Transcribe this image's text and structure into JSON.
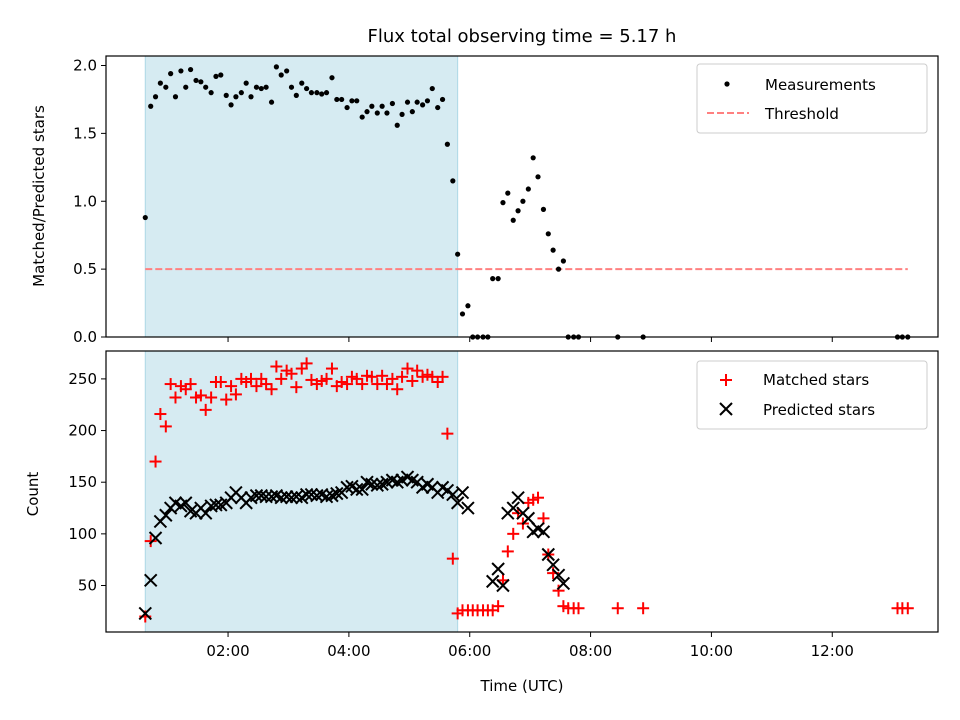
{
  "chart_data": [
    {
      "type": "scatter",
      "title": "Flux total observing time = 5.17 h",
      "ylabel": "Matched/Predicted stars",
      "xlabel": "",
      "ylim": [
        0,
        2.07
      ],
      "yticks": [
        0.0,
        0.5,
        1.0,
        1.5,
        2.0
      ],
      "ytick_labels": [
        "0.0",
        "0.5",
        "1.0",
        "1.5",
        "2.0"
      ],
      "xlim_hours": [
        -0.02,
        13.75
      ],
      "xticks_hours": [
        2,
        4,
        6,
        8,
        10,
        12
      ],
      "grid": false,
      "legend_position": "top-right",
      "observing_window_hours": [
        0.63,
        5.8
      ],
      "colors": {
        "measurements": "#000000",
        "threshold": "#ff8080",
        "window": "#add8e6"
      },
      "threshold": {
        "name": "Threshold",
        "value": 0.5,
        "x_start_hours": 0.63,
        "x_end_hours": 13.25
      },
      "series": [
        {
          "name": "Measurements",
          "x_hours": [
            0.63,
            0.72,
            0.8,
            0.88,
            0.97,
            1.05,
            1.13,
            1.22,
            1.3,
            1.38,
            1.47,
            1.55,
            1.63,
            1.72,
            1.8,
            1.88,
            1.97,
            2.05,
            2.13,
            2.22,
            2.3,
            2.38,
            2.47,
            2.55,
            2.63,
            2.72,
            2.8,
            2.88,
            2.97,
            3.05,
            3.13,
            3.22,
            3.3,
            3.38,
            3.47,
            3.55,
            3.63,
            3.72,
            3.8,
            3.88,
            3.97,
            4.05,
            4.13,
            4.22,
            4.3,
            4.38,
            4.47,
            4.55,
            4.63,
            4.72,
            4.8,
            4.88,
            4.97,
            5.05,
            5.13,
            5.22,
            5.3,
            5.38,
            5.47,
            5.55,
            5.63,
            5.72,
            5.8,
            5.88,
            5.97,
            6.05,
            6.13,
            6.22,
            6.3,
            6.38,
            6.47,
            6.55,
            6.63,
            6.72,
            6.8,
            6.88,
            6.97,
            7.05,
            7.13,
            7.22,
            7.3,
            7.38,
            7.47,
            7.55,
            7.63,
            7.72,
            7.8,
            8.45,
            8.87,
            13.08,
            13.16,
            13.25
          ],
          "values": [
            0.88,
            1.7,
            1.77,
            1.87,
            1.84,
            1.94,
            1.77,
            1.96,
            1.84,
            1.97,
            1.89,
            1.88,
            1.84,
            1.8,
            1.92,
            1.93,
            1.78,
            1.71,
            1.77,
            1.8,
            1.87,
            1.77,
            1.84,
            1.83,
            1.84,
            1.73,
            1.99,
            1.93,
            1.96,
            1.84,
            1.78,
            1.87,
            1.83,
            1.8,
            1.8,
            1.79,
            1.8,
            1.91,
            1.75,
            1.75,
            1.69,
            1.74,
            1.74,
            1.62,
            1.66,
            1.7,
            1.65,
            1.7,
            1.65,
            1.72,
            1.56,
            1.64,
            1.73,
            1.66,
            1.73,
            1.71,
            1.74,
            1.83,
            1.69,
            1.75,
            1.42,
            1.15,
            0.61,
            0.17,
            0.23,
            0.0,
            0.0,
            0.0,
            0.0,
            0.43,
            0.43,
            0.99,
            1.06,
            0.86,
            0.93,
            1.0,
            1.09,
            1.32,
            1.18,
            0.94,
            0.76,
            0.64,
            0.5,
            0.56,
            0.0,
            0.0,
            0.0,
            0.0,
            0.0,
            0.0,
            0.0,
            0.0
          ]
        }
      ]
    },
    {
      "type": "scatter",
      "title": "",
      "ylabel": "Count",
      "xlabel": "Time (UTC)",
      "ylim": [
        5,
        277
      ],
      "yticks": [
        50,
        100,
        150,
        200,
        250
      ],
      "ytick_labels": [
        "50",
        "100",
        "150",
        "200",
        "250"
      ],
      "xlim_hours": [
        -0.02,
        13.75
      ],
      "xticks_hours": [
        2,
        4,
        6,
        8,
        10,
        12
      ],
      "xtick_labels": [
        "02:00",
        "04:00",
        "06:00",
        "08:00",
        "10:00",
        "12:00"
      ],
      "grid": false,
      "legend_position": "top-right",
      "observing_window_hours": [
        0.63,
        5.8
      ],
      "colors": {
        "matched": "#ff0000",
        "predicted": "#000000",
        "window": "#add8e6"
      },
      "series": [
        {
          "name": "Matched stars",
          "x_hours": [
            0.63,
            0.72,
            0.8,
            0.88,
            0.97,
            1.05,
            1.13,
            1.22,
            1.3,
            1.38,
            1.47,
            1.55,
            1.63,
            1.72,
            1.8,
            1.88,
            1.97,
            2.05,
            2.13,
            2.22,
            2.3,
            2.38,
            2.47,
            2.55,
            2.63,
            2.72,
            2.8,
            2.88,
            2.97,
            3.05,
            3.13,
            3.22,
            3.3,
            3.38,
            3.47,
            3.55,
            3.63,
            3.72,
            3.8,
            3.88,
            3.97,
            4.05,
            4.13,
            4.22,
            4.3,
            4.38,
            4.47,
            4.55,
            4.63,
            4.72,
            4.8,
            4.88,
            4.97,
            5.05,
            5.13,
            5.22,
            5.3,
            5.38,
            5.47,
            5.55,
            5.63,
            5.72,
            5.8,
            5.88,
            5.97,
            6.05,
            6.13,
            6.22,
            6.3,
            6.38,
            6.47,
            6.55,
            6.63,
            6.72,
            6.8,
            6.88,
            6.97,
            7.05,
            7.13,
            7.22,
            7.3,
            7.38,
            7.47,
            7.55,
            7.63,
            7.72,
            7.8,
            8.45,
            8.87,
            13.08,
            13.16,
            13.25
          ],
          "values": [
            20,
            93,
            170,
            216,
            204,
            245,
            232,
            243,
            240,
            245,
            232,
            234,
            220,
            232,
            247,
            247,
            230,
            243,
            235,
            250,
            247,
            250,
            243,
            250,
            245,
            240,
            262,
            250,
            258,
            255,
            242,
            260,
            265,
            249,
            245,
            248,
            250,
            260,
            243,
            247,
            245,
            252,
            250,
            245,
            253,
            252,
            245,
            253,
            245,
            250,
            240,
            252,
            260,
            248,
            258,
            252,
            254,
            252,
            247,
            252,
            197,
            76,
            23,
            26,
            26,
            26,
            26,
            26,
            26,
            26,
            30,
            55,
            83,
            100,
            120,
            110,
            130,
            133,
            135,
            115,
            80,
            62,
            45,
            30,
            28,
            28,
            28,
            28,
            28,
            28,
            28,
            28
          ]
        },
        {
          "name": "Predicted stars",
          "x_hours": [
            0.63,
            0.72,
            0.8,
            0.88,
            0.97,
            1.05,
            1.13,
            1.22,
            1.3,
            1.38,
            1.47,
            1.55,
            1.63,
            1.72,
            1.8,
            1.88,
            1.97,
            2.05,
            2.13,
            2.22,
            2.3,
            2.38,
            2.47,
            2.55,
            2.63,
            2.72,
            2.8,
            2.88,
            2.97,
            3.05,
            3.13,
            3.22,
            3.3,
            3.38,
            3.47,
            3.55,
            3.63,
            3.72,
            3.8,
            3.88,
            3.97,
            4.05,
            4.13,
            4.22,
            4.3,
            4.38,
            4.47,
            4.55,
            4.63,
            4.72,
            4.8,
            4.88,
            4.97,
            5.05,
            5.13,
            5.22,
            5.3,
            5.38,
            5.47,
            5.55,
            5.63,
            5.72,
            5.8,
            5.88,
            5.97,
            6.38,
            6.47,
            6.55,
            6.63,
            6.72,
            6.8,
            6.88,
            6.97,
            7.05,
            7.13,
            7.22,
            7.3,
            7.38,
            7.47,
            7.55
          ],
          "values": [
            23,
            55,
            96,
            112,
            118,
            125,
            130,
            127,
            130,
            122,
            120,
            125,
            120,
            127,
            128,
            128,
            130,
            135,
            140,
            135,
            130,
            135,
            137,
            137,
            136,
            136,
            137,
            135,
            136,
            135,
            136,
            135,
            138,
            138,
            137,
            138,
            136,
            137,
            139,
            140,
            145,
            146,
            143,
            143,
            150,
            148,
            147,
            148,
            150,
            152,
            150,
            152,
            155,
            152,
            150,
            145,
            148,
            145,
            140,
            145,
            142,
            138,
            130,
            140,
            125,
            54,
            66,
            50,
            120,
            125,
            135,
            120,
            115,
            102,
            105,
            102,
            80,
            70,
            60,
            52
          ]
        }
      ]
    }
  ]
}
